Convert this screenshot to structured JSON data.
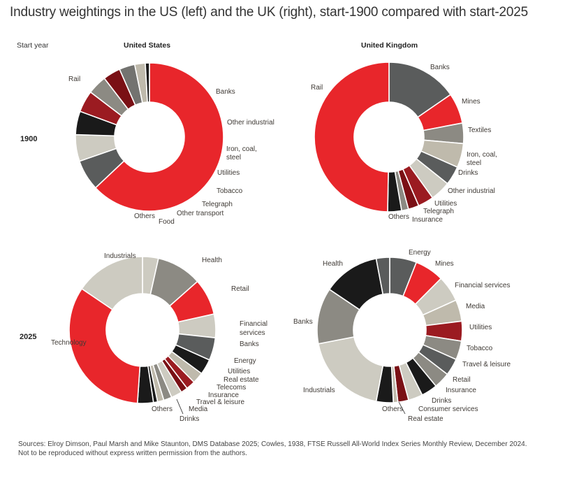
{
  "title": "Industry weightings in the US (left) and the UK (right), start-1900 compared with start-2025",
  "row_header": "Start year",
  "col_headers": [
    "United States",
    "United Kingdom"
  ],
  "years": [
    "1900",
    "2025"
  ],
  "source": "Sources: Elroy Dimson, Paul Marsh and Mike Staunton, DMS Database 2025; Cowles, 1938, FTSE Russell All-World Index Series Monthly Review, December 2024. Not to be reproduced without express written permission from the authors.",
  "colors": {
    "red": "#e8262b",
    "dark_red": "#9b1b21",
    "maroon": "#7a1015",
    "charcoal": "#5a5c5c",
    "black": "#1a1a1a",
    "grey": "#8c8a83",
    "light": "#cdcbc1",
    "beige": "#bfbaac",
    "mid_grey": "#737370"
  },
  "chart_data": [
    {
      "type": "pie",
      "title": "United States 1900",
      "country": "United States",
      "year": "1900",
      "unit": "percent",
      "slices": [
        {
          "label": "Rail",
          "value": 62.8,
          "color": "red"
        },
        {
          "label": "Banks",
          "value": 6.7,
          "color": "charcoal"
        },
        {
          "label": "Other industrial",
          "value": 5.8,
          "color": "light"
        },
        {
          "label": "Iron, coal, steel",
          "value": 5.1,
          "color": "black"
        },
        {
          "label": "Utilities",
          "value": 4.7,
          "color": "dark_red"
        },
        {
          "label": "Tobacco",
          "value": 4.2,
          "color": "grey"
        },
        {
          "label": "Telegraph",
          "value": 3.8,
          "color": "maroon"
        },
        {
          "label": "Other transport",
          "value": 3.4,
          "color": "mid_grey"
        },
        {
          "label": "Food",
          "value": 2.3,
          "color": "beige"
        },
        {
          "label": "Others",
          "value": 0.9,
          "color": "black"
        }
      ]
    },
    {
      "type": "pie",
      "title": "United Kingdom 1900",
      "country": "United Kingdom",
      "year": "1900",
      "unit": "percent",
      "slices": [
        {
          "label": "Banks",
          "value": 15.4,
          "color": "charcoal"
        },
        {
          "label": "Mines",
          "value": 6.6,
          "color": "red"
        },
        {
          "label": "Textiles",
          "value": 4.4,
          "color": "grey"
        },
        {
          "label": "Iron, coal, steel",
          "value": 5.2,
          "color": "beige"
        },
        {
          "label": "Drinks",
          "value": 4.1,
          "color": "charcoal"
        },
        {
          "label": "Other industrial",
          "value": 4.4,
          "color": "light"
        },
        {
          "label": "Utilities",
          "value": 3.4,
          "color": "dark_red"
        },
        {
          "label": "Telegraph",
          "value": 2.3,
          "color": "maroon"
        },
        {
          "label": "Insurance",
          "value": 1.5,
          "color": "grey"
        },
        {
          "label": "Others",
          "value": 3.0,
          "color": "black"
        },
        {
          "label": "Rail",
          "value": 49.7,
          "color": "red"
        }
      ]
    },
    {
      "type": "pie",
      "title": "United States 2025",
      "country": "United States",
      "year": "2025",
      "unit": "percent",
      "slices": [
        {
          "label": "Industrials",
          "value": 3.5,
          "color": "light",
          "continued": true
        },
        {
          "label": "Health",
          "value": 10.0,
          "color": "grey"
        },
        {
          "label": "Retail",
          "value": 8.0,
          "color": "red"
        },
        {
          "label": "Financial services",
          "value": 5.2,
          "color": "light"
        },
        {
          "label": "Banks",
          "value": 5.0,
          "color": "charcoal"
        },
        {
          "label": "Energy",
          "value": 3.4,
          "color": "black"
        },
        {
          "label": "Utilities",
          "value": 2.5,
          "color": "beige"
        },
        {
          "label": "Real estate",
          "value": 2.0,
          "color": "dark_red"
        },
        {
          "label": "Telecoms",
          "value": 1.5,
          "color": "maroon"
        },
        {
          "label": "Insurance",
          "value": 2.4,
          "color": "light"
        },
        {
          "label": "Travel & leisure",
          "value": 1.8,
          "color": "grey"
        },
        {
          "label": "Media",
          "value": 1.4,
          "color": "beige"
        },
        {
          "label": "Drinks",
          "value": 0.9,
          "color": "black"
        },
        {
          "label": "Others",
          "value": 3.5,
          "color": "black"
        },
        {
          "label": "Technology",
          "value": 33.4,
          "color": "red"
        },
        {
          "label": "Industrials",
          "value": 15.5,
          "color": "light"
        }
      ]
    },
    {
      "type": "pie",
      "title": "United Kingdom 2025",
      "country": "United Kingdom",
      "year": "2025",
      "unit": "percent",
      "slices": [
        {
          "label": "Energy",
          "value": 6.0,
          "color": "charcoal",
          "continued": true
        },
        {
          "label": "Mines",
          "value": 6.5,
          "color": "red"
        },
        {
          "label": "Financial services",
          "value": 5.8,
          "color": "light"
        },
        {
          "label": "Media",
          "value": 4.8,
          "color": "beige"
        },
        {
          "label": "Utilities",
          "value": 4.4,
          "color": "dark_red"
        },
        {
          "label": "Tobacco",
          "value": 4.2,
          "color": "grey"
        },
        {
          "label": "Travel & leisure",
          "value": 3.8,
          "color": "charcoal"
        },
        {
          "label": "Retail",
          "value": 3.6,
          "color": "grey"
        },
        {
          "label": "Insurance",
          "value": 3.6,
          "color": "black"
        },
        {
          "label": "Drinks",
          "value": 3.2,
          "color": "light"
        },
        {
          "label": "Consumer services",
          "value": 2.4,
          "color": "maroon"
        },
        {
          "label": "Real estate",
          "value": 1.0,
          "color": "beige"
        },
        {
          "label": "Others",
          "value": 3.8,
          "color": "black"
        },
        {
          "label": "Industrials",
          "value": 19.0,
          "color": "light"
        },
        {
          "label": "Banks",
          "value": 12.5,
          "color": "grey"
        },
        {
          "label": "Health",
          "value": 12.6,
          "color": "black"
        },
        {
          "label": "Energy",
          "value": 3.0,
          "color": "charcoal"
        }
      ]
    }
  ],
  "labels": [
    [
      {
        "text": "Rail",
        "anchor": "start"
      },
      {
        "text": "Banks",
        "anchor": "start"
      },
      {
        "text": "Other industrial",
        "anchor": "start"
      },
      {
        "text": "Iron, coal,",
        "anchor": "start"
      },
      {
        "text": "steel",
        "anchor": "start"
      },
      {
        "text": "Utilities",
        "anchor": "start"
      },
      {
        "text": "Tobacco",
        "anchor": "start"
      },
      {
        "text": "Telegraph",
        "anchor": "start"
      },
      {
        "text": "Other transport",
        "anchor": "start"
      },
      {
        "text": "Food",
        "anchor": "start"
      },
      {
        "text": "Others",
        "anchor": "end"
      }
    ],
    [
      {
        "text": "Rail",
        "anchor": "start"
      },
      {
        "text": "Banks",
        "anchor": "start"
      },
      {
        "text": "Mines",
        "anchor": "start"
      },
      {
        "text": "Textiles",
        "anchor": "start"
      },
      {
        "text": "Iron, coal,",
        "anchor": "start"
      },
      {
        "text": "steel",
        "anchor": "start"
      },
      {
        "text": "Drinks",
        "anchor": "start"
      },
      {
        "text": "Other industrial",
        "anchor": "start"
      },
      {
        "text": "Utilities",
        "anchor": "start"
      },
      {
        "text": "Telegraph",
        "anchor": "start"
      },
      {
        "text": "Insurance",
        "anchor": "start"
      },
      {
        "text": "Others",
        "anchor": "end"
      }
    ],
    [
      {
        "text": "Industrials",
        "anchor": "start"
      },
      {
        "text": "Health",
        "anchor": "start"
      },
      {
        "text": "Retail",
        "anchor": "start"
      },
      {
        "text": "Financial",
        "anchor": "start"
      },
      {
        "text": "services",
        "anchor": "start"
      },
      {
        "text": "Banks",
        "anchor": "start"
      },
      {
        "text": "Energy",
        "anchor": "start"
      },
      {
        "text": "Utilities",
        "anchor": "start"
      },
      {
        "text": "Real estate",
        "anchor": "start"
      },
      {
        "text": "Telecoms",
        "anchor": "start"
      },
      {
        "text": "Insurance",
        "anchor": "start"
      },
      {
        "text": "Travel & leisure",
        "anchor": "start"
      },
      {
        "text": "Media",
        "anchor": "start"
      },
      {
        "text": "Drinks",
        "anchor": "start"
      },
      {
        "text": "Others",
        "anchor": "end"
      },
      {
        "text": "Technology",
        "anchor": "start"
      }
    ],
    [
      {
        "text": "Energy",
        "anchor": "start"
      },
      {
        "text": "Mines",
        "anchor": "start"
      },
      {
        "text": "Financial services",
        "anchor": "start"
      },
      {
        "text": "Media",
        "anchor": "start"
      },
      {
        "text": "Utilities",
        "anchor": "start"
      },
      {
        "text": "Tobacco",
        "anchor": "start"
      },
      {
        "text": "Travel & leisure",
        "anchor": "start"
      },
      {
        "text": "Retail",
        "anchor": "start"
      },
      {
        "text": "Insurance",
        "anchor": "start"
      },
      {
        "text": "Drinks",
        "anchor": "start"
      },
      {
        "text": "Consumer services",
        "anchor": "start"
      },
      {
        "text": "Real estate",
        "anchor": "start"
      },
      {
        "text": "Others",
        "anchor": "end"
      },
      {
        "text": "Industrials",
        "anchor": "start"
      },
      {
        "text": "Banks",
        "anchor": "start"
      },
      {
        "text": "Health",
        "anchor": "start"
      }
    ]
  ]
}
